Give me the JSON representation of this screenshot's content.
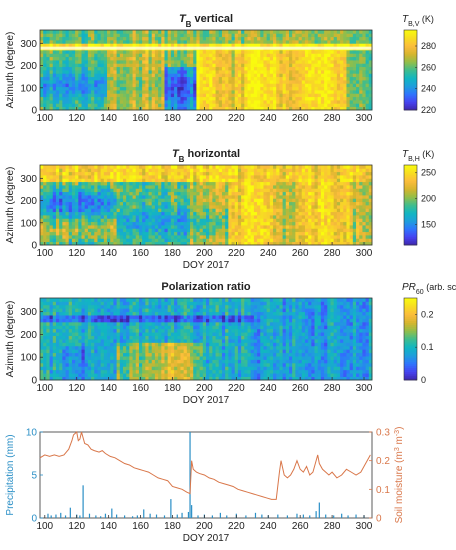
{
  "colors": {
    "precip": "#2a8fc6",
    "soil": "#d9774a",
    "colormap": [
      "#3e26a8",
      "#4743f0",
      "#2f74fe",
      "#1f9edc",
      "#11b6c2",
      "#3fbd8e",
      "#91be4a",
      "#d6b52d",
      "#fbbc3c",
      "#f7dc22",
      "#f9fb0e"
    ]
  },
  "chart_data": [
    {
      "type": "heatmap",
      "title": "T",
      "title_sub": "B",
      "title_rest": " vertical",
      "xlabel": "",
      "ylabel": "Azimuth (degree)",
      "xlim": [
        97,
        305
      ],
      "ylim": [
        0,
        360
      ],
      "xticks": [
        "100",
        "120",
        "140",
        "160",
        "180",
        "200",
        "220",
        "240",
        "260",
        "280",
        "300"
      ],
      "yticks": [
        "0",
        "100",
        "200",
        "300"
      ],
      "colorbar": {
        "label_main": "T",
        "label_sub": "B,V",
        "label_rest": " (K)",
        "range": [
          220,
          295
        ],
        "ticks": [
          "220",
          "240",
          "260",
          "280"
        ]
      }
    },
    {
      "type": "heatmap",
      "title": "T",
      "title_sub": "B",
      "title_rest": " horizontal",
      "xlabel": "DOY 2017",
      "ylabel": "Azimuth (degree)",
      "xlim": [
        97,
        305
      ],
      "ylim": [
        0,
        360
      ],
      "xticks": [
        "100",
        "120",
        "140",
        "160",
        "180",
        "200",
        "220",
        "240",
        "260",
        "280",
        "300"
      ],
      "yticks": [
        "0",
        "100",
        "200",
        "300"
      ],
      "colorbar": {
        "label_main": "T",
        "label_sub": "B,H",
        "label_rest": " (K)",
        "range": [
          110,
          265
        ],
        "ticks": [
          "150",
          "200",
          "250"
        ]
      }
    },
    {
      "type": "heatmap",
      "title": "Polarization ratio",
      "title_sub": "",
      "title_rest": "",
      "xlabel": "DOY 2017",
      "ylabel": "Azimuth (degree)",
      "xlim": [
        97,
        305
      ],
      "ylim": [
        0,
        360
      ],
      "xticks": [
        "100",
        "120",
        "140",
        "160",
        "180",
        "200",
        "220",
        "240",
        "260",
        "280",
        "300"
      ],
      "yticks": [
        "0",
        "100",
        "200",
        "300"
      ],
      "colorbar": {
        "label_main": "PR",
        "label_sub": "60",
        "label_rest": " (arb. scale)",
        "range": [
          0,
          0.25
        ],
        "ticks": [
          "0",
          "0.1",
          "0.2"
        ]
      }
    },
    {
      "type": "line",
      "title": "",
      "xlabel": "DOY 2017",
      "xlim": [
        97,
        305
      ],
      "xticks": [
        "100",
        "120",
        "140",
        "160",
        "180",
        "200",
        "220",
        "240",
        "260",
        "280",
        "300"
      ],
      "y_left": {
        "label": "Precipitation (mm)",
        "ylim": [
          0,
          10
        ],
        "ticks": [
          "0",
          "5",
          "10"
        ]
      },
      "y_right": {
        "label": "Soil moisture (m",
        "label_sup": "3",
        "label_mid": " m",
        "label_sup2": "-3",
        "label_end": ")",
        "ylim": [
          0,
          0.3
        ],
        "ticks": [
          "0",
          "0.1",
          "0.2",
          "0.3"
        ]
      },
      "series": [
        {
          "kind": "bar",
          "axis": "left",
          "x": [
            102,
            104,
            107,
            110,
            113,
            116,
            120,
            122,
            124,
            128,
            132,
            135,
            138,
            142,
            145,
            150,
            155,
            158,
            162,
            166,
            170,
            175,
            179,
            183,
            186,
            190,
            191,
            192,
            196,
            200,
            205,
            210,
            214,
            220,
            226,
            232,
            236,
            240,
            246,
            252,
            258,
            262,
            266,
            270,
            272,
            276,
            281,
            286,
            290,
            295,
            300
          ],
          "values": [
            0.5,
            0.3,
            0.4,
            0.6,
            0.3,
            1.2,
            0.4,
            0.3,
            3.8,
            0.5,
            0.3,
            0.2,
            0.5,
            1.1,
            0.4,
            0.3,
            0.2,
            0.3,
            1.0,
            0.5,
            0.4,
            0.3,
            2.2,
            0.4,
            0.6,
            0.7,
            10.0,
            1.5,
            0.3,
            0.4,
            0.3,
            0.6,
            0.3,
            0.5,
            0.3,
            0.6,
            0.4,
            0.3,
            0.4,
            0.3,
            0.5,
            0.4,
            0.3,
            0.8,
            1.8,
            0.4,
            0.3,
            0.5,
            0.3,
            0.4,
            0.3
          ]
        },
        {
          "kind": "line",
          "axis": "right",
          "x": [
            97,
            100,
            103,
            106,
            109,
            112,
            115,
            117,
            118,
            120,
            121,
            122,
            123,
            125,
            127,
            129,
            131,
            134,
            136,
            138,
            141,
            144,
            147,
            150,
            153,
            156,
            159,
            162,
            165,
            168,
            171,
            174,
            177,
            180,
            183,
            186,
            189,
            191,
            192,
            193,
            195,
            197,
            200,
            203,
            206,
            209,
            212,
            215,
            218,
            221,
            224,
            227,
            230,
            233,
            236,
            239,
            242,
            245,
            247,
            248,
            250,
            252,
            254,
            256,
            258,
            260,
            262,
            264,
            266,
            268,
            270,
            271,
            272,
            274,
            276,
            278,
            280,
            283,
            286,
            289,
            292,
            295,
            298,
            300,
            302,
            304
          ],
          "values": [
            0.21,
            0.22,
            0.215,
            0.22,
            0.215,
            0.22,
            0.24,
            0.27,
            0.29,
            0.3,
            0.27,
            0.275,
            0.3,
            0.26,
            0.255,
            0.24,
            0.235,
            0.23,
            0.235,
            0.225,
            0.215,
            0.21,
            0.2,
            0.19,
            0.185,
            0.175,
            0.17,
            0.165,
            0.16,
            0.15,
            0.14,
            0.135,
            0.13,
            0.11,
            0.105,
            0.1,
            0.09,
            0.085,
            0.2,
            0.17,
            0.16,
            0.155,
            0.15,
            0.14,
            0.135,
            0.125,
            0.12,
            0.115,
            0.11,
            0.1,
            0.095,
            0.09,
            0.085,
            0.08,
            0.075,
            0.07,
            0.065,
            0.065,
            0.16,
            0.2,
            0.15,
            0.14,
            0.15,
            0.17,
            0.2,
            0.17,
            0.16,
            0.18,
            0.15,
            0.16,
            0.2,
            0.22,
            0.19,
            0.17,
            0.16,
            0.15,
            0.16,
            0.14,
            0.15,
            0.17,
            0.16,
            0.15,
            0.16,
            0.18,
            0.2,
            0.22
          ]
        }
      ]
    }
  ]
}
